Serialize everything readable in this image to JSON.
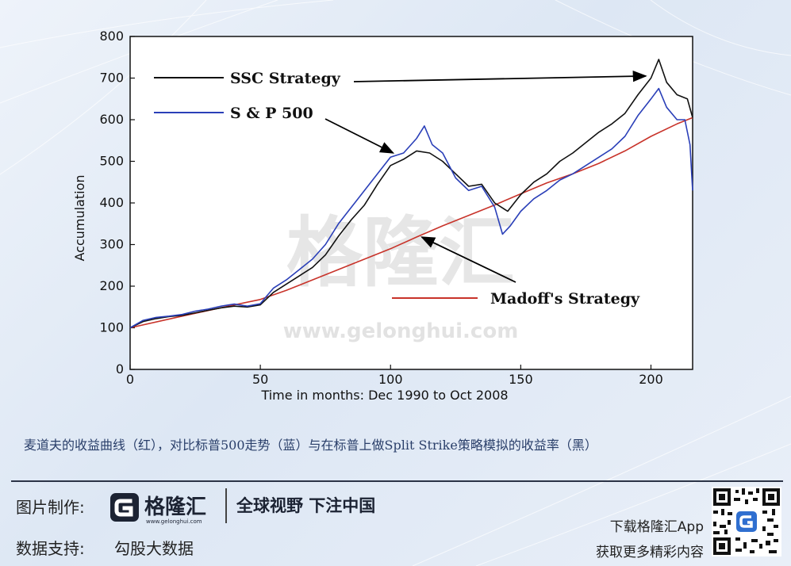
{
  "chart_data": {
    "type": "line",
    "xlabel": "Time in months: Dec 1990 to Oct 2008",
    "ylabel": "Accumulation",
    "xlim": [
      0,
      216
    ],
    "ylim": [
      0,
      800
    ],
    "xticks": [
      0,
      50,
      100,
      150,
      200
    ],
    "yticks": [
      0,
      100,
      200,
      300,
      400,
      500,
      600,
      700,
      800
    ],
    "grid": false,
    "series": [
      {
        "name": "SSC Strategy",
        "color": "#111111",
        "points": [
          [
            0,
            100
          ],
          [
            5,
            115
          ],
          [
            10,
            122
          ],
          [
            15,
            127
          ],
          [
            20,
            130
          ],
          [
            25,
            136
          ],
          [
            30,
            142
          ],
          [
            35,
            148
          ],
          [
            40,
            152
          ],
          [
            45,
            150
          ],
          [
            50,
            155
          ],
          [
            55,
            185
          ],
          [
            60,
            205
          ],
          [
            65,
            225
          ],
          [
            70,
            245
          ],
          [
            75,
            275
          ],
          [
            80,
            320
          ],
          [
            85,
            360
          ],
          [
            90,
            395
          ],
          [
            95,
            445
          ],
          [
            100,
            490
          ],
          [
            105,
            505
          ],
          [
            110,
            525
          ],
          [
            115,
            520
          ],
          [
            120,
            500
          ],
          [
            125,
            470
          ],
          [
            130,
            440
          ],
          [
            135,
            445
          ],
          [
            140,
            400
          ],
          [
            145,
            380
          ],
          [
            150,
            420
          ],
          [
            155,
            450
          ],
          [
            160,
            470
          ],
          [
            165,
            500
          ],
          [
            170,
            520
          ],
          [
            175,
            545
          ],
          [
            180,
            570
          ],
          [
            185,
            590
          ],
          [
            190,
            615
          ],
          [
            195,
            660
          ],
          [
            200,
            700
          ],
          [
            203,
            745
          ],
          [
            206,
            690
          ],
          [
            210,
            660
          ],
          [
            214,
            650
          ],
          [
            216,
            605
          ]
        ]
      },
      {
        "name": "S & P 500",
        "color": "#2a3fb8",
        "points": [
          [
            0,
            100
          ],
          [
            5,
            118
          ],
          [
            10,
            125
          ],
          [
            15,
            128
          ],
          [
            20,
            132
          ],
          [
            25,
            140
          ],
          [
            30,
            145
          ],
          [
            35,
            152
          ],
          [
            40,
            157
          ],
          [
            45,
            152
          ],
          [
            50,
            158
          ],
          [
            55,
            195
          ],
          [
            60,
            215
          ],
          [
            65,
            240
          ],
          [
            70,
            265
          ],
          [
            75,
            300
          ],
          [
            80,
            350
          ],
          [
            85,
            390
          ],
          [
            90,
            430
          ],
          [
            95,
            470
          ],
          [
            100,
            510
          ],
          [
            105,
            520
          ],
          [
            110,
            555
          ],
          [
            113,
            585
          ],
          [
            116,
            540
          ],
          [
            120,
            520
          ],
          [
            125,
            460
          ],
          [
            130,
            430
          ],
          [
            135,
            440
          ],
          [
            140,
            390
          ],
          [
            143,
            325
          ],
          [
            146,
            345
          ],
          [
            150,
            380
          ],
          [
            155,
            410
          ],
          [
            160,
            430
          ],
          [
            165,
            455
          ],
          [
            170,
            470
          ],
          [
            175,
            490
          ],
          [
            180,
            510
          ],
          [
            185,
            530
          ],
          [
            190,
            560
          ],
          [
            195,
            610
          ],
          [
            200,
            650
          ],
          [
            203,
            675
          ],
          [
            206,
            630
          ],
          [
            210,
            600
          ],
          [
            213,
            600
          ],
          [
            215,
            540
          ],
          [
            216,
            430
          ]
        ]
      },
      {
        "name": "Madoff's Strategy",
        "color": "#c8332a",
        "points": [
          [
            0,
            100
          ],
          [
            20,
            128
          ],
          [
            40,
            155
          ],
          [
            50,
            168
          ],
          [
            60,
            190
          ],
          [
            70,
            215
          ],
          [
            80,
            240
          ],
          [
            90,
            265
          ],
          [
            100,
            290
          ],
          [
            110,
            318
          ],
          [
            120,
            345
          ],
          [
            130,
            370
          ],
          [
            140,
            395
          ],
          [
            150,
            422
          ],
          [
            160,
            448
          ],
          [
            170,
            470
          ],
          [
            180,
            495
          ],
          [
            190,
            525
          ],
          [
            200,
            560
          ],
          [
            210,
            590
          ],
          [
            216,
            605
          ]
        ]
      }
    ],
    "annotations": [
      {
        "label": "SSC Strategy",
        "target": [
          198,
          705
        ]
      },
      {
        "label": "S & P 500",
        "target": [
          101,
          520
        ]
      },
      {
        "label": "Madoff's Strategy",
        "target": [
          112,
          318
        ]
      }
    ]
  },
  "watermark": {
    "cn": "格隆汇",
    "url": "www.gelonghui.com"
  },
  "caption": "麦道夫的收益曲线（红），对比标普500走势（蓝）与在标普上做Split Strike策略模拟的收益率（黑）",
  "footer": {
    "made_by_label": "图片制作:",
    "logo_text": "格隆汇",
    "logo_url": "www.gelonghui.com",
    "slogan": "全球视野 下注中国",
    "data_label": "数据支持:",
    "data_source": "勾股大数据",
    "app_line1": "下载格隆汇App",
    "app_line2": "获取更多精彩内容"
  },
  "colors": {
    "accent": "#1c2333",
    "brand_blue": "#2f6fd0"
  }
}
